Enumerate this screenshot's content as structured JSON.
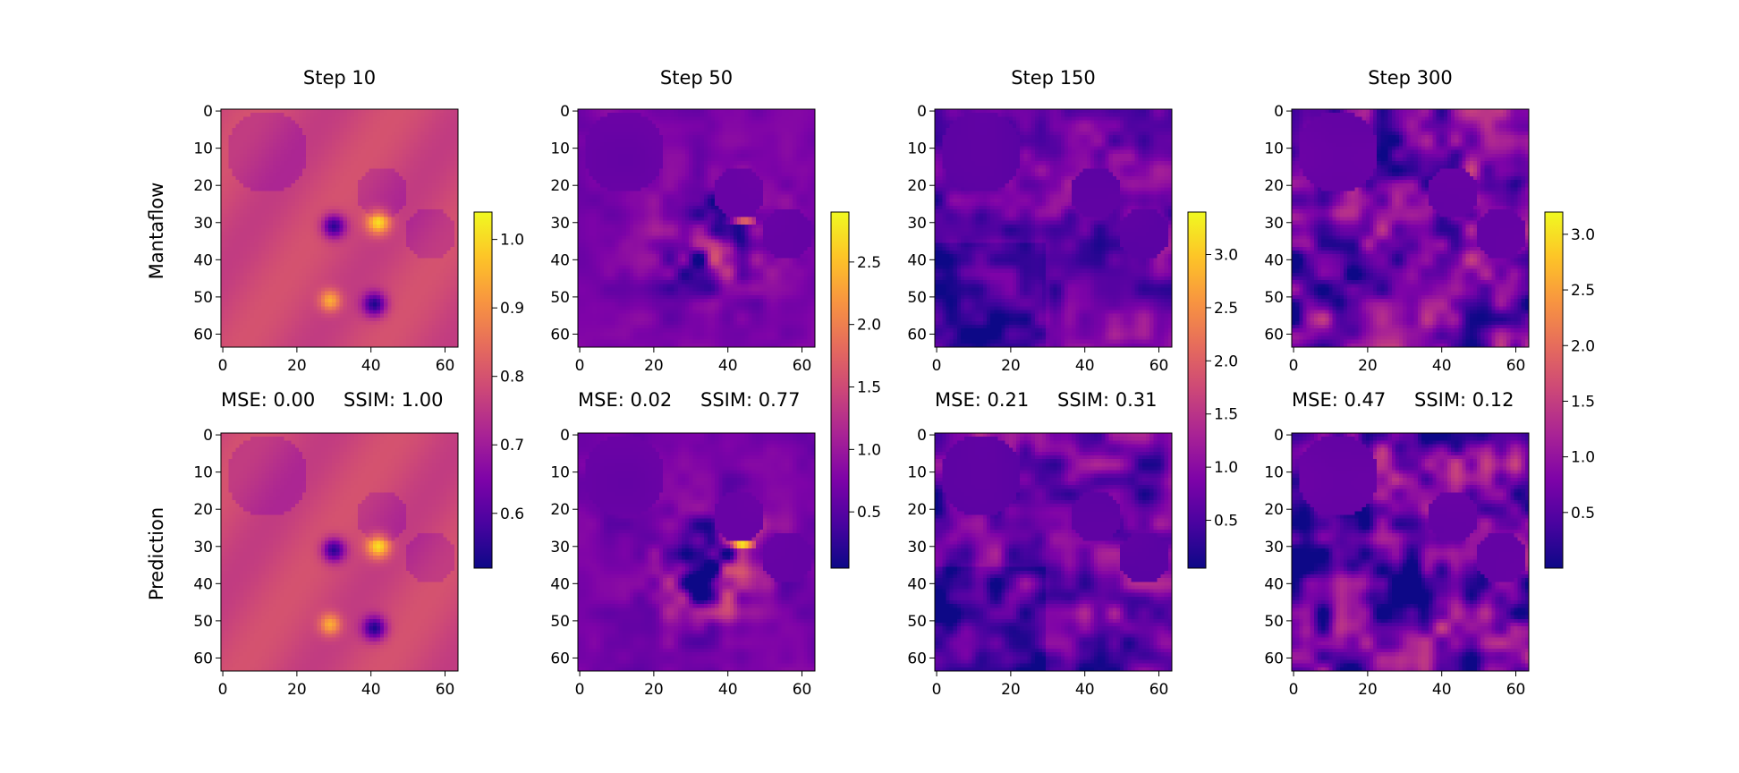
{
  "figure": {
    "row_labels": [
      "Mantaflow",
      "Prediction"
    ]
  },
  "chart_data": [
    {
      "type": "heatmap",
      "title": "Step 10",
      "metrics": {
        "mse_text": "MSE: 0.00",
        "ssim_text": "SSIM: 1.00"
      },
      "xlim": [
        0,
        63
      ],
      "ylim": [
        0,
        63
      ],
      "xticks": [
        "0",
        "20",
        "40",
        "60"
      ],
      "yticks": [
        "0",
        "10",
        "20",
        "30",
        "40",
        "50",
        "60"
      ],
      "colormap": "plasma",
      "colorbar": {
        "range": [
          0.52,
          1.04
        ],
        "ticks": [
          "0.6",
          "0.7",
          "0.8",
          "0.9",
          "1.0"
        ],
        "tick_values": [
          0.6,
          0.7,
          0.8,
          0.9,
          1.0
        ]
      },
      "field_hint": {
        "base": 0.79,
        "noise": 0.0,
        "obstacle_circles": 4,
        "sources": "two dipoles"
      }
    },
    {
      "type": "heatmap",
      "title": "Step 50",
      "metrics": {
        "mse_text": "MSE: 0.02",
        "ssim_text": "SSIM: 0.77"
      },
      "xlim": [
        0,
        63
      ],
      "ylim": [
        0,
        63
      ],
      "xticks": [
        "0",
        "20",
        "40",
        "60"
      ],
      "yticks": [
        "0",
        "10",
        "20",
        "30",
        "40",
        "50",
        "60"
      ],
      "colormap": "plasma",
      "colorbar": {
        "range": [
          0.05,
          2.9
        ],
        "ticks": [
          "0.5",
          "1.0",
          "1.5",
          "2.0",
          "2.5"
        ],
        "tick_values": [
          0.5,
          1.0,
          1.5,
          2.0,
          2.5
        ]
      },
      "field_hint": {
        "base": 0.75,
        "noise": 0.08,
        "obstacle_circles": 4,
        "sources": "vortex wedge"
      }
    },
    {
      "type": "heatmap",
      "title": "Step 150",
      "metrics": {
        "mse_text": "MSE: 0.21",
        "ssim_text": "SSIM: 0.31"
      },
      "xlim": [
        0,
        63
      ],
      "ylim": [
        0,
        63
      ],
      "xticks": [
        "0",
        "20",
        "40",
        "60"
      ],
      "yticks": [
        "0",
        "10",
        "20",
        "30",
        "40",
        "50",
        "60"
      ],
      "colormap": "plasma",
      "colorbar": {
        "range": [
          0.05,
          3.4
        ],
        "ticks": [
          "0.5",
          "1.0",
          "1.5",
          "2.0",
          "2.5",
          "3.0"
        ],
        "tick_values": [
          0.5,
          1.0,
          1.5,
          2.0,
          2.5,
          3.0
        ]
      },
      "field_hint": {
        "base": 0.7,
        "noise": 0.6,
        "obstacle_circles": 4,
        "sources": "turbulent"
      }
    },
    {
      "type": "heatmap",
      "title": "Step 300",
      "metrics": {
        "mse_text": "MSE: 0.47",
        "ssim_text": "SSIM: 0.12"
      },
      "xlim": [
        0,
        63
      ],
      "ylim": [
        0,
        63
      ],
      "xticks": [
        "0",
        "20",
        "40",
        "60"
      ],
      "yticks": [
        "0",
        "10",
        "20",
        "30",
        "40",
        "50",
        "60"
      ],
      "colormap": "plasma",
      "colorbar": {
        "range": [
          0.0,
          3.2
        ],
        "ticks": [
          "0.5",
          "1.0",
          "1.5",
          "2.0",
          "2.5",
          "3.0"
        ],
        "tick_values": [
          0.5,
          1.0,
          1.5,
          2.0,
          2.5,
          3.0
        ]
      },
      "field_hint": {
        "base": 0.8,
        "noise": 0.9,
        "obstacle_circles": 4,
        "sources": "fully turbulent"
      }
    }
  ]
}
